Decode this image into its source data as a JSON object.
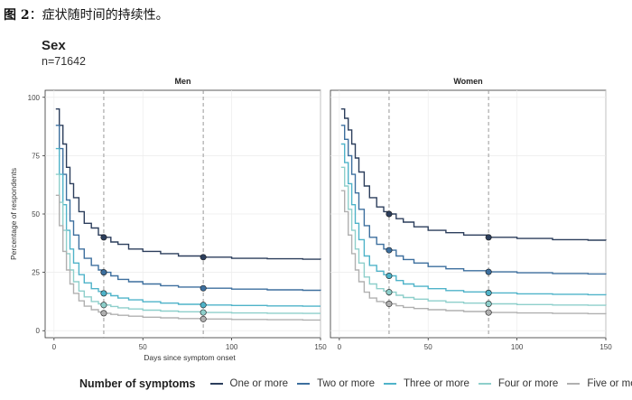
{
  "figure": {
    "label": "图 2",
    "caption": "：症状随时间的持续性。"
  },
  "chart_data": {
    "type": "line",
    "title": "Sex",
    "subtitle": "n=71642",
    "xlabel": "Days since symptom onset",
    "ylabel": "Percentage of respondents",
    "xlim": [
      -5,
      150
    ],
    "ylim": [
      -3,
      103
    ],
    "xticks": [
      0,
      50,
      100,
      150
    ],
    "yticks": [
      0,
      25,
      50,
      75,
      100
    ],
    "grid": true,
    "reference_lines_x": [
      28,
      84
    ],
    "legend": {
      "title": "Number of symptoms",
      "position": "bottom"
    },
    "x": [
      1,
      3,
      5,
      7,
      9,
      11,
      14,
      17,
      21,
      25,
      28,
      32,
      36,
      42,
      50,
      60,
      70,
      84,
      100,
      120,
      140,
      150
    ],
    "panels": [
      {
        "name": "Men",
        "series": [
          {
            "name": "One or more",
            "color": "#2c3e5c",
            "values": [
              95,
              88,
              80,
              70,
              63,
              57,
              51,
              46,
              44,
              41,
              40,
              38,
              37,
              35,
              34,
              33,
              32,
              31.5,
              31,
              30.8,
              30.6,
              30.5
            ]
          },
          {
            "name": "Two or more",
            "color": "#3d6f9e",
            "values": [
              88,
              78,
              67,
              56,
              47,
              41,
              35,
              31,
              28,
              26,
              25,
              23.5,
              22,
              21,
              20,
              19.3,
              18.7,
              18.2,
              17.8,
              17.5,
              17.3,
              17.2
            ]
          },
          {
            "name": "Three or more",
            "color": "#4fb3c9",
            "values": [
              78,
              67,
              54,
              43,
              35,
              29,
              24,
              20.5,
              18,
              16.8,
              16,
              15,
              14,
              13.2,
              12.4,
              11.8,
              11.3,
              11,
              10.8,
              10.6,
              10.5,
              10.5
            ]
          },
          {
            "name": "Four or more",
            "color": "#8ecfcb",
            "values": [
              67,
              55,
              43,
              33,
              26,
              21,
              17,
              14.5,
              12.5,
              11.5,
              11,
              10.4,
              9.8,
              9.3,
              8.8,
              8.4,
              8.1,
              7.8,
              7.6,
              7.5,
              7.4,
              7.4
            ]
          },
          {
            "name": "Five or more",
            "color": "#b0b0b0",
            "values": [
              58,
              45,
              34,
              26,
              20,
              16,
              12.8,
              10.5,
              9,
              8,
              7.5,
              7,
              6.6,
              6.2,
              5.8,
              5.5,
              5.2,
              5,
              4.8,
              4.7,
              4.6,
              4.6
            ]
          }
        ],
        "markers": [
          {
            "series": "One or more",
            "x": 28,
            "y": 40
          },
          {
            "series": "One or more",
            "x": 84,
            "y": 31.5
          },
          {
            "series": "Two or more",
            "x": 28,
            "y": 25
          },
          {
            "series": "Two or more",
            "x": 84,
            "y": 18.2
          },
          {
            "series": "Three or more",
            "x": 28,
            "y": 16
          },
          {
            "series": "Three or more",
            "x": 84,
            "y": 11
          },
          {
            "series": "Four or more",
            "x": 28,
            "y": 11
          },
          {
            "series": "Four or more",
            "x": 84,
            "y": 7.8
          },
          {
            "series": "Five or more",
            "x": 28,
            "y": 7.5
          },
          {
            "series": "Five or more",
            "x": 84,
            "y": 5
          }
        ]
      },
      {
        "name": "Women",
        "series": [
          {
            "name": "One or more",
            "color": "#2c3e5c",
            "values": [
              95,
              91,
              86,
              80,
              74,
              68,
              62,
              57,
              53,
              51,
              50,
              48,
              46.5,
              44.5,
              43,
              42,
              41,
              40,
              39.5,
              39,
              38.8,
              38.7
            ]
          },
          {
            "name": "Two or more",
            "color": "#3d6f9e",
            "values": [
              88,
              82,
              75,
              67,
              59,
              52,
              45,
              40,
              37,
              35,
              34.5,
              32,
              30.5,
              29,
              27.5,
              26.5,
              25.7,
              25.2,
              24.8,
              24.5,
              24.3,
              24.2
            ]
          },
          {
            "name": "Three or more",
            "color": "#4fb3c9",
            "values": [
              80,
              72,
              63,
              54,
              46,
              39,
              32,
              28,
              25.5,
              24,
              23.5,
              21.5,
              20,
              19,
              18,
              17.2,
              16.6,
              16.2,
              15.8,
              15.6,
              15.4,
              15.3
            ]
          },
          {
            "name": "Four or more",
            "color": "#8ecfcb",
            "values": [
              70,
              62,
              52,
              43,
              35,
              29,
              23,
              20,
              18,
              17,
              16.5,
              15.2,
              14.2,
              13.5,
              12.8,
              12.2,
              11.8,
              11.5,
              11.2,
              11,
              10.9,
              10.8
            ]
          },
          {
            "name": "Five or more",
            "color": "#b0b0b0",
            "values": [
              60,
              51,
              41,
              33,
              26,
              21,
              16.5,
              14,
              12.5,
              12,
              11.5,
              10.7,
              10,
              9.5,
              9,
              8.6,
              8.2,
              7.8,
              7.6,
              7.4,
              7.3,
              7.2
            ]
          }
        ],
        "markers": [
          {
            "series": "One or more",
            "x": 28,
            "y": 50
          },
          {
            "series": "One or more",
            "x": 84,
            "y": 40
          },
          {
            "series": "Two or more",
            "x": 28,
            "y": 34.5
          },
          {
            "series": "Two or more",
            "x": 84,
            "y": 25.2
          },
          {
            "series": "Three or more",
            "x": 28,
            "y": 23.5
          },
          {
            "series": "Three or more",
            "x": 84,
            "y": 16.2
          },
          {
            "series": "Four or more",
            "x": 28,
            "y": 16.5
          },
          {
            "series": "Four or more",
            "x": 84,
            "y": 11.5
          },
          {
            "series": "Five or more",
            "x": 28,
            "y": 11.5
          },
          {
            "series": "Five or more",
            "x": 84,
            "y": 7.8
          }
        ]
      }
    ]
  }
}
